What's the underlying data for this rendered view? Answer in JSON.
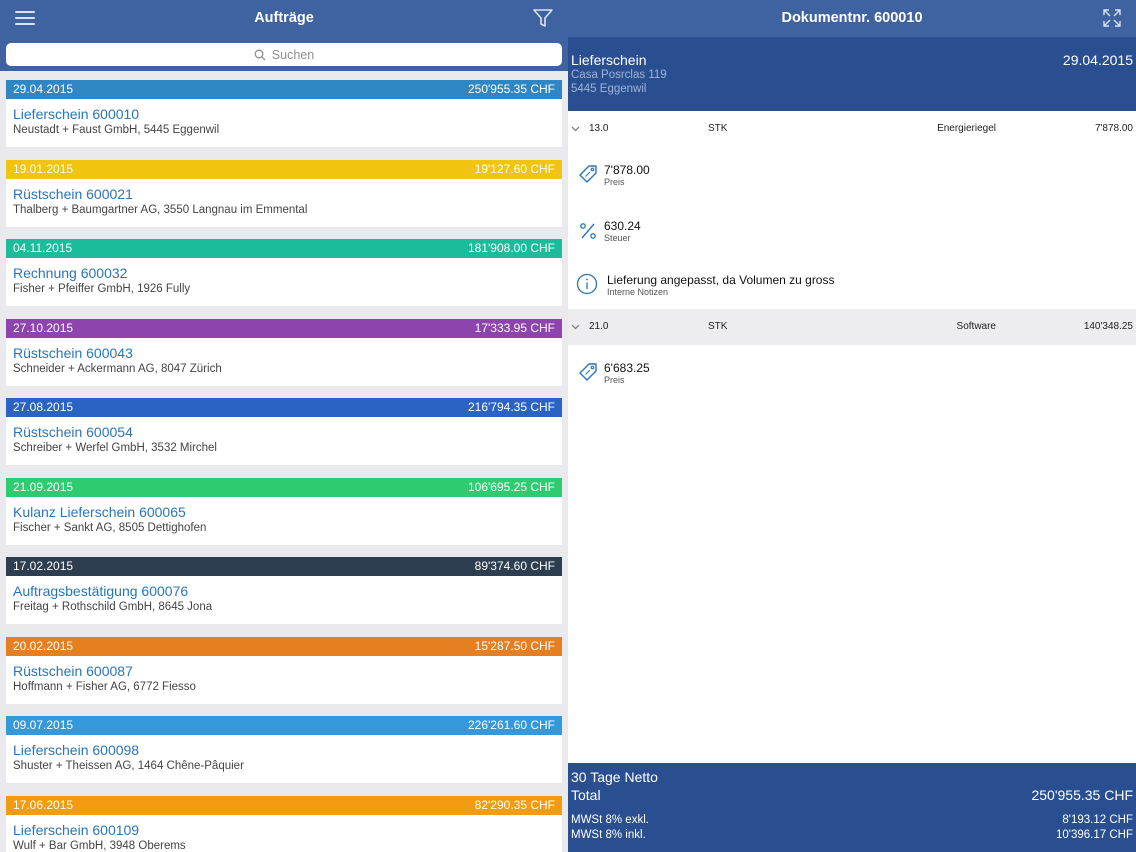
{
  "colors": {
    "header_bg": "#3f63a0",
    "doc_panel_bg": "#294f90",
    "link_blue": "#2a75b9",
    "list_bg": "#e9e9ee"
  },
  "left": {
    "title": "Aufträge",
    "menu_icon": "hamburger-menu-icon",
    "filter_icon": "funnel-filter-icon",
    "search": {
      "placeholder": "Suchen",
      "icon": "magnifier-icon"
    }
  },
  "orders": [
    {
      "date": "29.04.2015",
      "amount": "250'955.35 CHF",
      "title": "Lieferschein 600010",
      "customer": "Neustadt + Faust GmbH, 5445 Eggenwil",
      "color": "#2f86c4"
    },
    {
      "date": "19.01.2015",
      "amount": "19'127.60 CHF",
      "title": "Rüstschein 600021",
      "customer": "Thalberg + Baumgartner AG, 3550 Langnau im Emmental",
      "color": "#f1c40f"
    },
    {
      "date": "04.11.2015",
      "amount": "181'908.00 CHF",
      "title": "Rechnung 600032",
      "customer": "Fisher + Pfeiffer GmbH, 1926 Fully",
      "color": "#1abc9c"
    },
    {
      "date": "27.10.2015",
      "amount": "17'333.95 CHF",
      "title": "Rüstschein 600043",
      "customer": "Schneider + Ackermann AG, 8047 Zürich",
      "color": "#8e44ad"
    },
    {
      "date": "27.08.2015",
      "amount": "216'794.35 CHF",
      "title": "Rüstschein 600054",
      "customer": "Schreiber + Werfel GmbH, 3532 Mirchel",
      "color": "#2b63c4"
    },
    {
      "date": "21.09.2015",
      "amount": "106'695.25 CHF",
      "title": "Kulanz Lieferschein 600065",
      "customer": "Fischer + Sankt AG, 8505 Dettighofen",
      "color": "#2ecc71"
    },
    {
      "date": "17.02.2015",
      "amount": "89'374.60 CHF",
      "title": "Auftragsbestätigung 600076",
      "customer": "Freitag + Rothschild GmbH, 8645 Jona",
      "color": "#2c3e50"
    },
    {
      "date": "20.02.2015",
      "amount": "15'287.50 CHF",
      "title": "Rüstschein 600087",
      "customer": "Hoffmann + Fisher AG, 6772 Fiesso",
      "color": "#e67e22"
    },
    {
      "date": "09.07.2015",
      "amount": "226'261.60 CHF",
      "title": "Lieferschein 600098",
      "customer": "Shuster + Theissen AG, 1464 Chêne-Pâquier",
      "color": "#3498db"
    },
    {
      "date": "17.06.2015",
      "amount": "82'290.35 CHF",
      "title": "Lieferschein 600109",
      "customer": "Wulf + Bar GmbH, 3948 Oberems",
      "color": "#f39c12"
    }
  ],
  "right": {
    "title": "Dokumentnr. 600010",
    "expand_icon": "expand-arrows-icon",
    "doc": {
      "type": "Lieferschein",
      "date": "29.04.2015",
      "address1": "Casa Posrclas 119",
      "address2": "5445 Eggenwil"
    },
    "positions": [
      {
        "qty": "13.0",
        "unit": "STK",
        "article": "Energieriegel",
        "total": "7'878.00",
        "details": [
          {
            "icon": "price-tag-icon",
            "value": "7'878.00",
            "label": "Preis"
          },
          {
            "icon": "percent-icon",
            "value": "630.24",
            "label": "Steuer"
          },
          {
            "icon": "info-icon",
            "value": "Lieferung angepasst, da Volumen zu gross",
            "label": "Interne Notizen"
          }
        ]
      },
      {
        "qty": "21.0",
        "unit": "STK",
        "article": "Software",
        "total": "140'348.25",
        "details": [
          {
            "icon": "price-tag-icon",
            "value": "6'683.25",
            "label": "Preis"
          }
        ]
      }
    ],
    "footer": {
      "terms": "30 Tage Netto",
      "total_label": "Total",
      "total_value": "250'955.35 CHF",
      "vat_excl_label": "MWSt 8% exkl.",
      "vat_excl_value": "8'193.12 CHF",
      "vat_incl_label": "MWSt 8% inkl.",
      "vat_incl_value": "10'396.17 CHF"
    }
  }
}
